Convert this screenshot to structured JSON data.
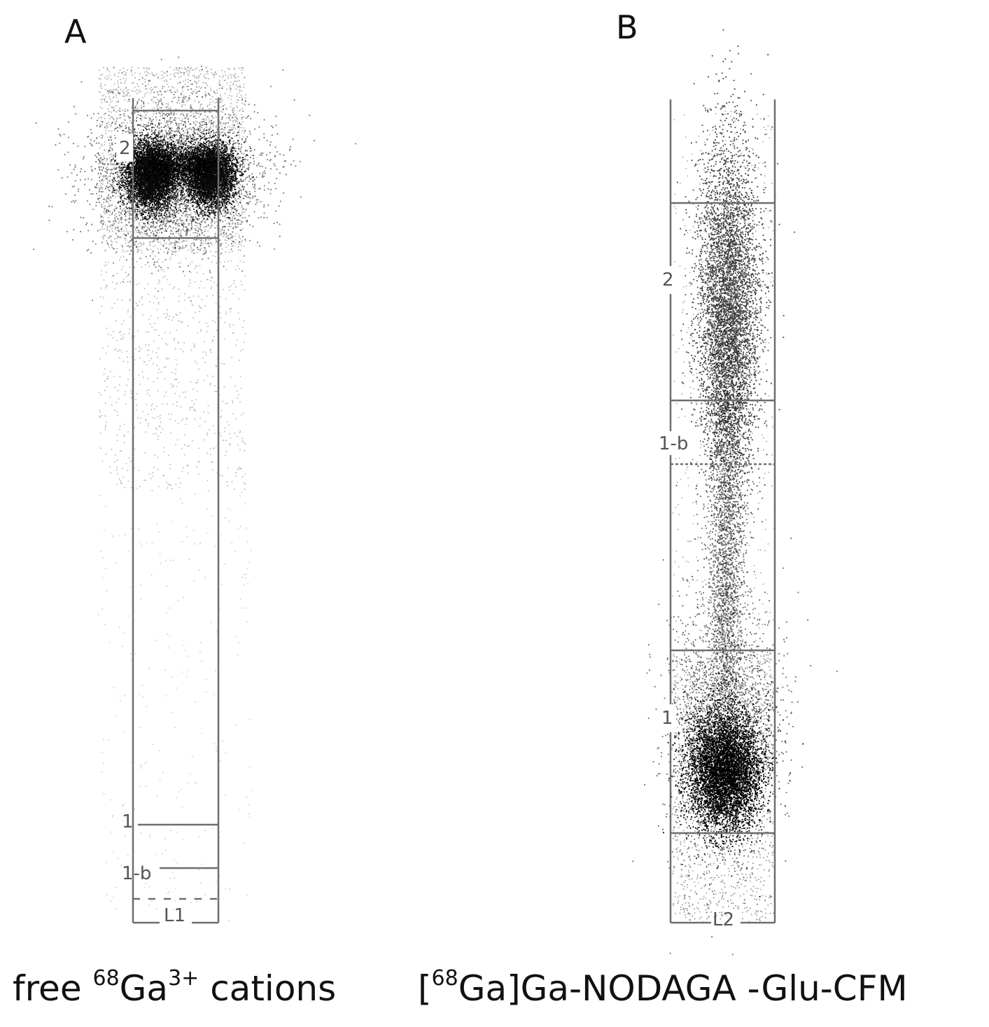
{
  "panels": [
    {
      "letter": "A",
      "lane_name": "L1",
      "region_labels": {
        "top": "2",
        "front": "1",
        "front_b": "1-b"
      },
      "caption": {
        "pre": "free ",
        "sup1": "68",
        "mid": "Ga",
        "sup2": "3+",
        "post": " cations"
      }
    },
    {
      "letter": "B",
      "lane_name": "L2",
      "region_labels": {
        "top": "2",
        "mid": "1-b",
        "bottom": "1"
      },
      "caption": {
        "pre": "[",
        "sup1": "68",
        "post": "Ga]Ga-NODAGA -Glu-CFM"
      }
    }
  ],
  "colors": {
    "ink": "#111111",
    "lines": "#6e6e6e",
    "dots": "#000000"
  }
}
